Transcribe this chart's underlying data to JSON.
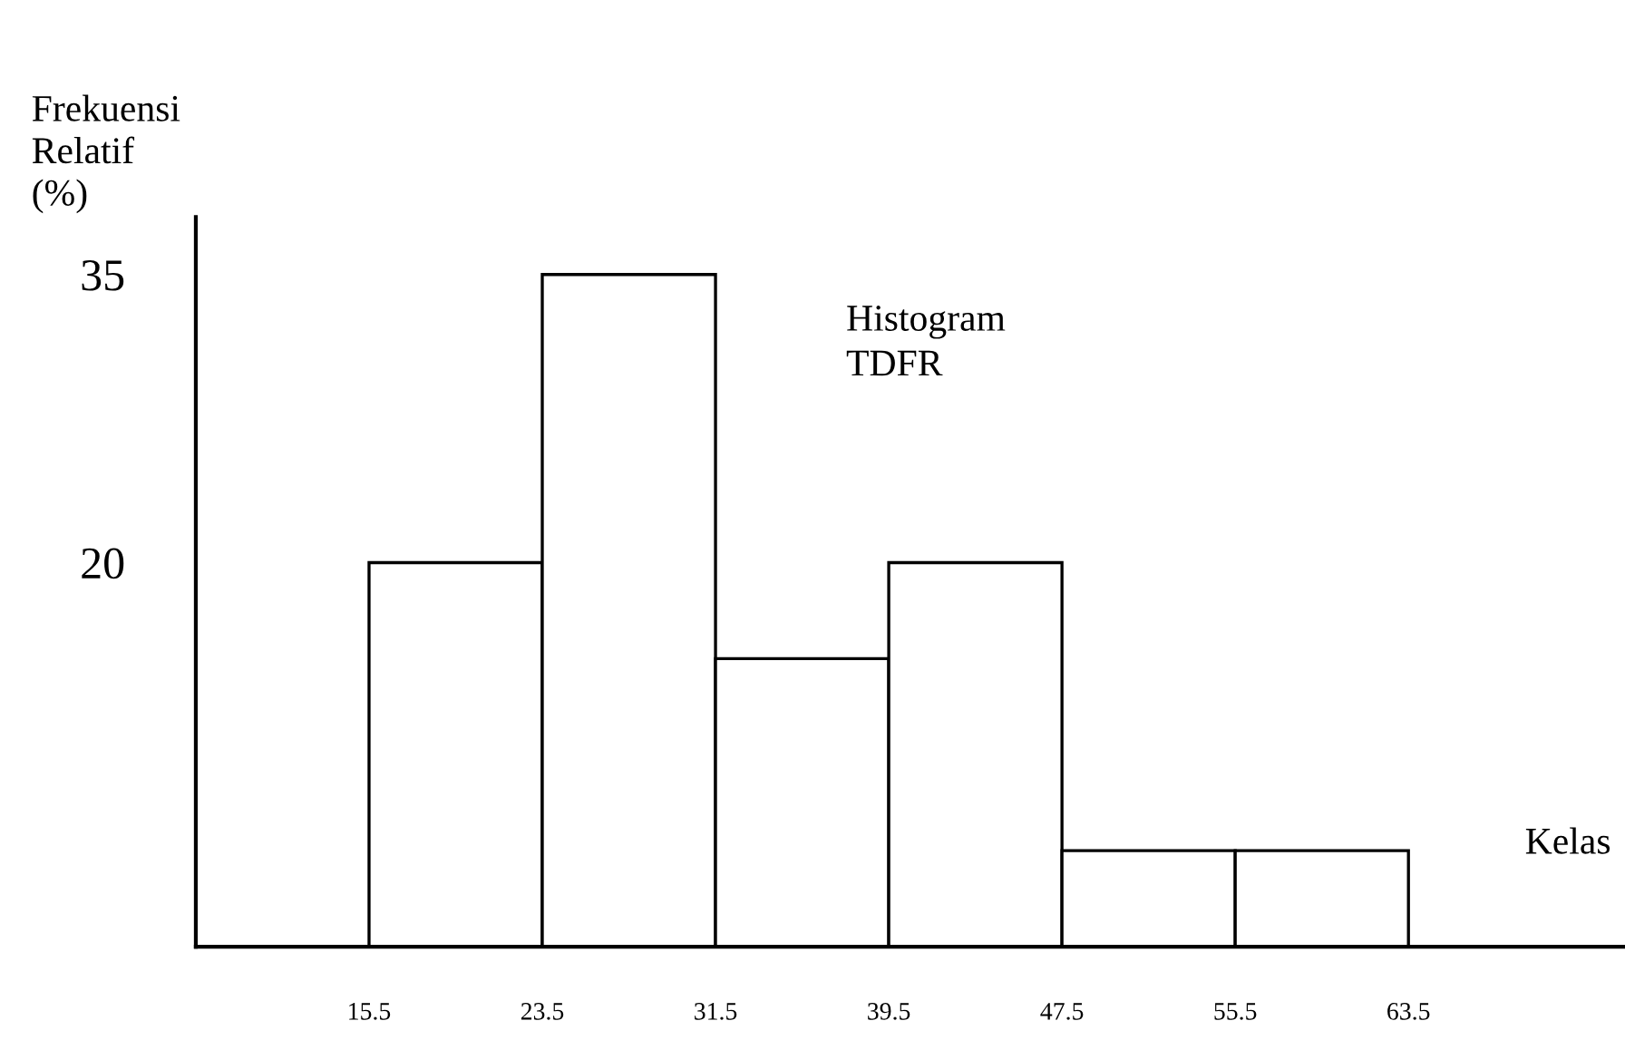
{
  "chart_data": {
    "type": "histogram",
    "ylabel": "Frekuensi\nRelatif\n(%)",
    "xlabel": "Kelas",
    "annotations": [
      "Histogram\nTDFR"
    ],
    "bins": [
      15.5,
      23.5,
      31.5,
      39.5,
      47.5,
      55.5,
      63.5
    ],
    "values": [
      20,
      35,
      15,
      20,
      5,
      5
    ],
    "color": "#ffffff",
    "xlim": [
      7.5,
      73.5
    ],
    "xticks": [
      15.5,
      23.5,
      31.5,
      39.5,
      47.5,
      55.5,
      63.5
    ],
    "ylim": [
      0,
      38
    ],
    "yticks": [
      20,
      35
    ],
    "grid": false
  }
}
